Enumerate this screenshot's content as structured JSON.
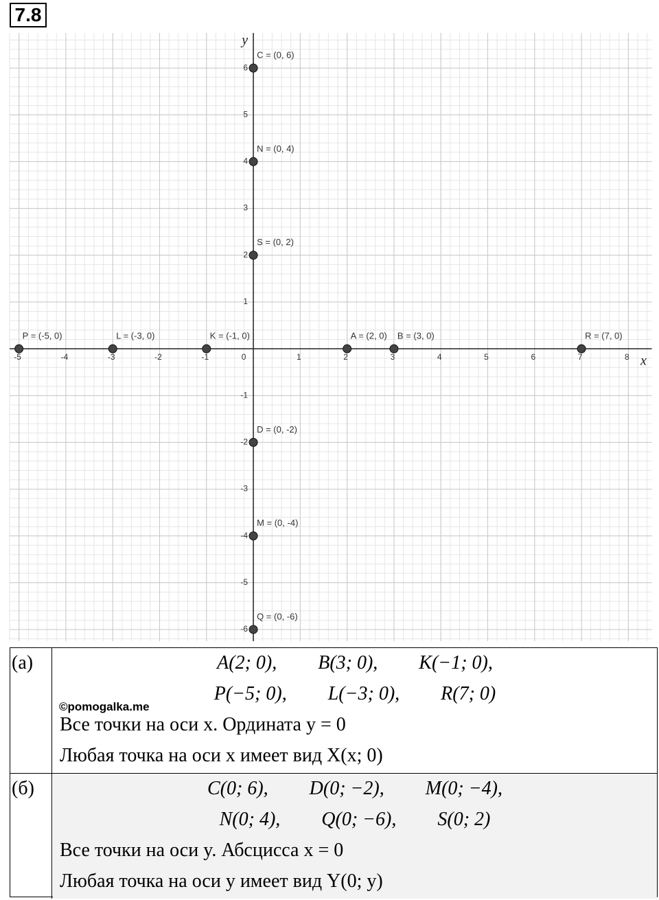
{
  "header": {
    "label": "7.8"
  },
  "graph": {
    "x_label": "x",
    "y_label": "y",
    "xlim": [
      -5.2,
      8.5
    ],
    "ylim": [
      -6.25,
      6.75
    ],
    "xticks": [
      -5,
      -4,
      -3,
      -2,
      -1,
      0,
      1,
      2,
      3,
      4,
      5,
      6,
      7,
      8
    ],
    "yticks": [
      -6,
      -5,
      -4,
      -3,
      -2,
      -1,
      1,
      2,
      3,
      4,
      5,
      6
    ],
    "minor_step": 0.2,
    "points": [
      {
        "label": "C = (0, 6)",
        "x": 0,
        "y": 6
      },
      {
        "label": "N = (0, 4)",
        "x": 0,
        "y": 4
      },
      {
        "label": "S = (0, 2)",
        "x": 0,
        "y": 2
      },
      {
        "label": "P = (-5, 0)",
        "x": -5,
        "y": 0
      },
      {
        "label": "L = (-3, 0)",
        "x": -3,
        "y": 0
      },
      {
        "label": "K = (-1, 0)",
        "x": -1,
        "y": 0
      },
      {
        "label": "A = (2, 0)",
        "x": 2,
        "y": 0
      },
      {
        "label": "B = (3, 0)",
        "x": 3,
        "y": 0
      },
      {
        "label": "R = (7, 0)",
        "x": 7,
        "y": 0
      },
      {
        "label": "D = (0, -2)",
        "x": 0,
        "y": -2
      },
      {
        "label": "M = (0, -4)",
        "x": 0,
        "y": -4
      },
      {
        "label": "Q = (0, -6)",
        "x": 0,
        "y": -6
      }
    ]
  },
  "table": {
    "rows": [
      {
        "label": "(а)",
        "points": [
          [
            "A(2; 0),",
            "B(3; 0),",
            "K(−1; 0),"
          ],
          [
            "P(−5; 0),",
            "L(−3; 0),",
            "R(7; 0)"
          ]
        ],
        "lines": [
          "Все точки на оси x. Ордината y = 0",
          "Любая точка на оси x имеет вид X(x; 0)"
        ]
      },
      {
        "label": "(б)",
        "points": [
          [
            "C(0; 6),",
            "D(0; −2),",
            "M(0; −4),"
          ],
          [
            "N(0; 4),",
            "Q(0; −6),",
            "S(0; 2)"
          ]
        ],
        "lines": [
          "Все точки на оси y. Абсцисса x = 0",
          "Любая точка на оси y имеет вид Y(0; y)"
        ]
      }
    ]
  },
  "watermark": "©pomogalka.me"
}
